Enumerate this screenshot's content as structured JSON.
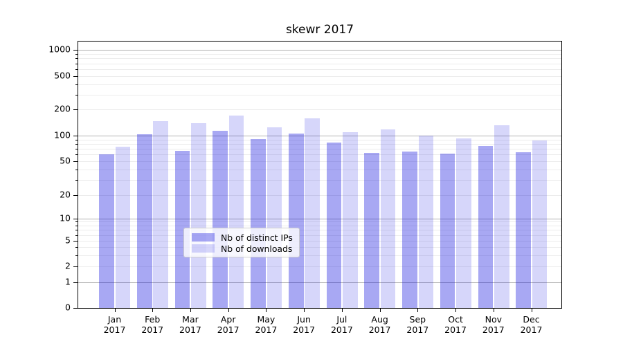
{
  "chart_data": {
    "type": "bar",
    "title": "skewr 2017",
    "categories": [
      "Jan 2017",
      "Feb 2017",
      "Mar 2017",
      "Apr 2017",
      "May 2017",
      "Jun 2017",
      "Jul 2017",
      "Aug 2017",
      "Sep 2017",
      "Oct 2017",
      "Nov 2017",
      "Dec 2017"
    ],
    "months": [
      "Jan",
      "Feb",
      "Mar",
      "Apr",
      "May",
      "Jun",
      "Jul",
      "Aug",
      "Sep",
      "Oct",
      "Nov",
      "Dec"
    ],
    "year_label": "2017",
    "series": [
      {
        "name": "Nb of distinct IPs",
        "color": "rgba(0,0,221,0.34)",
        "values": [
          60,
          105,
          66,
          114,
          91,
          107,
          84,
          63,
          65,
          61,
          76,
          64
        ]
      },
      {
        "name": "Nb of downloads",
        "color": "rgba(0,0,221,0.16)",
        "values": [
          75,
          147,
          140,
          170,
          125,
          159,
          110,
          118,
          100,
          93,
          131,
          88
        ]
      }
    ],
    "yscale": "symlog",
    "ylim": [
      0,
      1400
    ],
    "y_ticks": [
      1000,
      500,
      200,
      100,
      50,
      20,
      10,
      5,
      2,
      1,
      0
    ],
    "y_major_gridlines": [
      1,
      10,
      100,
      1000
    ],
    "y_minor_gridlines": [
      2,
      3,
      4,
      5,
      6,
      7,
      8,
      9,
      20,
      30,
      40,
      50,
      60,
      70,
      80,
      90,
      200,
      300,
      400,
      500,
      600,
      700,
      800,
      900
    ],
    "grid": "on",
    "legend_position": "lower center",
    "xlabel": "",
    "ylabel": ""
  },
  "colors": {
    "grid_major": "#b0b0b0",
    "grid_minor": "#ececec",
    "frame": "#000000",
    "legend_border": "#cccccc",
    "legend_bg": "rgba(255,255,255,0.8)"
  }
}
